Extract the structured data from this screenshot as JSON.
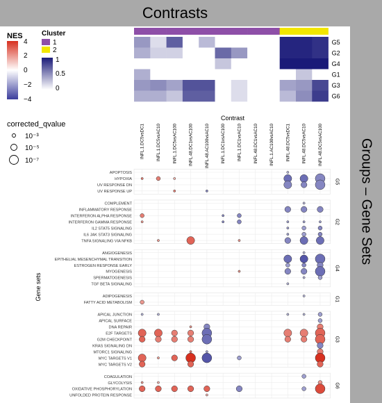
{
  "banner": {
    "top_title": "Contrasts",
    "right_title": "Groups – Gene Sets"
  },
  "legend": {
    "nes_title": "NES",
    "nes_ticks": [
      "4",
      "2",
      "0",
      "−2",
      "−4"
    ],
    "nes_colors": {
      "high": "#d7301f",
      "mid": "#ffffff",
      "low": "#3b3d9c"
    },
    "cluster_title": "Cluster",
    "clusters": [
      {
        "label": "1",
        "color": "#8e4fa8"
      },
      {
        "label": "2",
        "color": "#f2e600"
      }
    ],
    "heat_ticks": [
      "1",
      "0.5",
      "0"
    ],
    "heat_colors": {
      "high": "#1a1a78",
      "low": "#ffffff"
    },
    "q_title": "corrected_qvalue",
    "q_labels": [
      "10⁻³",
      "10⁻⁵",
      "10⁻⁷"
    ]
  },
  "chart_data": [
    {
      "type": "heatmap",
      "title": "",
      "xlabel": "Contrast",
      "columns": [
        "INFL.1.DC5vsDC1",
        "INFL.1.DC5vsAC10",
        "INFL.1.DC5vsAC100",
        "INFL.48.DC1vsAC100",
        "INFL.48.AC100vsAC10",
        "INFL.1.DC1vsAC100",
        "INFL.1.DC1vsAC10",
        "INFL.48.DC1vsAC10",
        "INFL.1.AC100vsAC10",
        "INFL.48.DC5vsDC1",
        "INFL.48.DC5vsAC10",
        "INFL.48.DC5vsAC100"
      ],
      "column_clusters": [
        "1",
        "1",
        "1",
        "1",
        "1",
        "1",
        "1",
        "1",
        "1",
        "2",
        "2",
        "2"
      ],
      "rows": [
        "G5",
        "G2",
        "G4",
        "G1",
        "G3",
        "G6"
      ],
      "values": [
        [
          0.45,
          0.15,
          0.7,
          0,
          0.3,
          0,
          0,
          0,
          0,
          0.95,
          0.95,
          0.9
        ],
        [
          0.35,
          0.2,
          0.2,
          0,
          0,
          0.65,
          0.45,
          0,
          0,
          0.95,
          0.95,
          0.9
        ],
        [
          0,
          0,
          0,
          0,
          0,
          0.25,
          0,
          0,
          0,
          1.0,
          1.0,
          1.0
        ],
        [
          0.35,
          0,
          0,
          0,
          0,
          0,
          0,
          0,
          0,
          0,
          0.25,
          0
        ],
        [
          0.45,
          0.5,
          0.4,
          0.75,
          0.75,
          0,
          0.15,
          0,
          0,
          0.4,
          0.45,
          0.8
        ],
        [
          0.35,
          0.35,
          0.25,
          0.7,
          0.7,
          0,
          0.15,
          0,
          0,
          0.3,
          0.5,
          0.85
        ]
      ],
      "value_range": [
        0,
        1
      ]
    },
    {
      "type": "scatter",
      "title": "",
      "ylabel": "Gene sets",
      "x": [
        "INFL.1.DC5vsDC1",
        "INFL.1.DC5vsAC10",
        "INFL.1.DC5vsAC100",
        "INFL.48.DC1vsAC100",
        "INFL.48.AC100vsAC10",
        "INFL.1.DC1vsAC100",
        "INFL.1.DC1vsAC10",
        "INFL.48.DC1vsAC10",
        "INFL.1.AC100vsAC10",
        "INFL.48.DC5vsDC1",
        "INFL.48.DC5vsAC10",
        "INFL.48.DC5vsAC100"
      ],
      "groups": [
        {
          "name": "G5",
          "genesets": [
            "APOPTOSIS",
            "HYPOXIA",
            "UV RESPONSE DN",
            "UV RESPONSE UP"
          ]
        },
        {
          "name": "G2",
          "genesets": [
            "COMPLEMENT",
            "INFLAMMATORY RESPONSE",
            "INTERFERON ALPHA RESPONSE",
            "INTERFERON GAMMA RESPONSE",
            "IL2 STAT5 SIGNALING",
            "IL6 JAK STAT3 SIGNALING",
            "TNFA SIGNALING VIA NFKB"
          ]
        },
        {
          "name": "G4",
          "genesets": [
            "ANGIOGENESIS",
            "EPITHELIAL MESENCHYMAL TRANSITION",
            "ESTROGEN RESPONSE EARLY",
            "MYOGENESIS",
            "SPERMATOGENESIS",
            "TGF BETA SIGNALING"
          ]
        },
        {
          "name": "G1",
          "genesets": [
            "ADIPOGENESIS",
            "FATTY ACID METABOLISM"
          ]
        },
        {
          "name": "G3",
          "genesets": [
            "APICAL JUNCTION",
            "APICAL SURFACE",
            "DNA REPAIR",
            "E2F TARGETS",
            "G2M CHECKPOINT",
            "KRAS SIGNALING DN",
            "MTORC1 SIGNALING",
            "MYC TARGETS V1",
            "MYC TARGETS V2"
          ]
        },
        {
          "name": "G6",
          "genesets": [
            "COAGULATION",
            "GLYCOLYSIS",
            "OXIDATIVE PHOSPHORYLATION",
            "UNFOLDED PROTEIN RESPONSE"
          ]
        }
      ],
      "points": [
        {
          "set": "APOPTOSIS",
          "col": 9,
          "nes": -1.5,
          "logq": 3
        },
        {
          "set": "HYPOXIA",
          "col": 0,
          "nes": 2.5,
          "logq": 3
        },
        {
          "set": "HYPOXIA",
          "col": 1,
          "nes": 2.5,
          "logq": 4
        },
        {
          "set": "HYPOXIA",
          "col": 2,
          "nes": 1.5,
          "logq": 3
        },
        {
          "set": "HYPOXIA",
          "col": 9,
          "nes": -3,
          "logq": 6
        },
        {
          "set": "HYPOXIA",
          "col": 10,
          "nes": -3,
          "logq": 6
        },
        {
          "set": "HYPOXIA",
          "col": 11,
          "nes": -2.5,
          "logq": 7
        },
        {
          "set": "UV RESPONSE DN",
          "col": 9,
          "nes": -2.5,
          "logq": 6
        },
        {
          "set": "UV RESPONSE DN",
          "col": 10,
          "nes": -2.5,
          "logq": 5
        },
        {
          "set": "UV RESPONSE DN",
          "col": 11,
          "nes": -2.5,
          "logq": 7
        },
        {
          "set": "UV RESPONSE UP",
          "col": 2,
          "nes": 2.5,
          "logq": 3
        },
        {
          "set": "UV RESPONSE UP",
          "col": 4,
          "nes": -2.5,
          "logq": 3
        },
        {
          "set": "COMPLEMENT",
          "col": 10,
          "nes": -1.5,
          "logq": 3
        },
        {
          "set": "INFLAMMATORY RESPONSE",
          "col": 9,
          "nes": -2.5,
          "logq": 5
        },
        {
          "set": "INFLAMMATORY RESPONSE",
          "col": 10,
          "nes": -2.5,
          "logq": 5
        },
        {
          "set": "INFLAMMATORY RESPONSE",
          "col": 11,
          "nes": -2.5,
          "logq": 5
        },
        {
          "set": "INTERFERON ALPHA RESPONSE",
          "col": 0,
          "nes": 2.5,
          "logq": 4
        },
        {
          "set": "INTERFERON ALPHA RESPONSE",
          "col": 5,
          "nes": -2.5,
          "logq": 3
        },
        {
          "set": "INTERFERON ALPHA RESPONSE",
          "col": 6,
          "nes": -2.5,
          "logq": 4
        },
        {
          "set": "INTERFERON GAMMA RESPONSE",
          "col": 0,
          "nes": 2,
          "logq": 3
        },
        {
          "set": "INTERFERON GAMMA RESPONSE",
          "col": 5,
          "nes": -2.5,
          "logq": 3
        },
        {
          "set": "INTERFERON GAMMA RESPONSE",
          "col": 6,
          "nes": -2.5,
          "logq": 4
        },
        {
          "set": "INTERFERON GAMMA RESPONSE",
          "col": 9,
          "nes": -2,
          "logq": 3
        },
        {
          "set": "INTERFERON GAMMA RESPONSE",
          "col": 10,
          "nes": -2,
          "logq": 3
        },
        {
          "set": "INTERFERON GAMMA RESPONSE",
          "col": 11,
          "nes": -2,
          "logq": 3
        },
        {
          "set": "IL2 STAT5 SIGNALING",
          "col": 9,
          "nes": -2,
          "logq": 3
        },
        {
          "set": "IL2 STAT5 SIGNALING",
          "col": 10,
          "nes": -2,
          "logq": 4
        },
        {
          "set": "IL2 STAT5 SIGNALING",
          "col": 11,
          "nes": -2.5,
          "logq": 4
        },
        {
          "set": "IL6 JAK STAT3 SIGNALING",
          "col": 9,
          "nes": -2,
          "logq": 3
        },
        {
          "set": "IL6 JAK STAT3 SIGNALING",
          "col": 10,
          "nes": -2,
          "logq": 4
        },
        {
          "set": "IL6 JAK STAT3 SIGNALING",
          "col": 11,
          "nes": -2.5,
          "logq": 4
        },
        {
          "set": "TNFA SIGNALING VIA NFKB",
          "col": 1,
          "nes": 2,
          "logq": 3
        },
        {
          "set": "TNFA SIGNALING VIA NFKB",
          "col": 3,
          "nes": 3,
          "logq": 6
        },
        {
          "set": "TNFA SIGNALING VIA NFKB",
          "col": 6,
          "nes": 2,
          "logq": 3
        },
        {
          "set": "TNFA SIGNALING VIA NFKB",
          "col": 9,
          "nes": -2.5,
          "logq": 5
        },
        {
          "set": "TNFA SIGNALING VIA NFKB",
          "col": 10,
          "nes": -3,
          "logq": 6
        },
        {
          "set": "TNFA SIGNALING VIA NFKB",
          "col": 11,
          "nes": -3,
          "logq": 6
        },
        {
          "set": "ANGIOGENESIS",
          "col": 10,
          "nes": -1.5,
          "logq": 3
        },
        {
          "set": "EPITHELIAL MESENCHYMAL TRANSITION",
          "col": 9,
          "nes": -3,
          "logq": 6
        },
        {
          "set": "EPITHELIAL MESENCHYMAL TRANSITION",
          "col": 10,
          "nes": -3.5,
          "logq": 6
        },
        {
          "set": "EPITHELIAL MESENCHYMAL TRANSITION",
          "col": 11,
          "nes": -3,
          "logq": 7
        },
        {
          "set": "ESTROGEN RESPONSE EARLY",
          "col": 9,
          "nes": -2,
          "logq": 4
        },
        {
          "set": "ESTROGEN RESPONSE EARLY",
          "col": 10,
          "nes": -2.5,
          "logq": 4
        },
        {
          "set": "ESTROGEN RESPONSE EARLY",
          "col": 11,
          "nes": -2.5,
          "logq": 5
        },
        {
          "set": "MYOGENESIS",
          "col": 6,
          "nes": 2,
          "logq": 3
        },
        {
          "set": "MYOGENESIS",
          "col": 9,
          "nes": -2.5,
          "logq": 5
        },
        {
          "set": "MYOGENESIS",
          "col": 10,
          "nes": -2.5,
          "logq": 5
        },
        {
          "set": "MYOGENESIS",
          "col": 11,
          "nes": -3,
          "logq": 7
        },
        {
          "set": "SPERMATOGENESIS",
          "col": 10,
          "nes": -1.5,
          "logq": 3
        },
        {
          "set": "SPERMATOGENESIS",
          "col": 11,
          "nes": -2,
          "logq": 4
        },
        {
          "set": "TGF BETA SIGNALING",
          "col": 9,
          "nes": -1.5,
          "logq": 3
        },
        {
          "set": "ADIPOGENESIS",
          "col": 10,
          "nes": -1.5,
          "logq": 3
        },
        {
          "set": "FATTY ACID METABOLISM",
          "col": 0,
          "nes": 2,
          "logq": 4
        },
        {
          "set": "APICAL JUNCTION",
          "col": 0,
          "nes": -1.5,
          "logq": 3
        },
        {
          "set": "APICAL JUNCTION",
          "col": 1,
          "nes": -1.5,
          "logq": 3
        },
        {
          "set": "APICAL JUNCTION",
          "col": 9,
          "nes": -1.5,
          "logq": 3
        },
        {
          "set": "APICAL JUNCTION",
          "col": 10,
          "nes": -1.5,
          "logq": 3
        },
        {
          "set": "APICAL JUNCTION",
          "col": 11,
          "nes": -2,
          "logq": 4
        },
        {
          "set": "APICAL SURFACE",
          "col": 11,
          "nes": -2,
          "logq": 4
        },
        {
          "set": "DNA REPAIR",
          "col": 3,
          "nes": 2,
          "logq": 3
        },
        {
          "set": "DNA REPAIR",
          "col": 4,
          "nes": -2.5,
          "logq": 5
        },
        {
          "set": "DNA REPAIR",
          "col": 11,
          "nes": 2.5,
          "logq": 5
        },
        {
          "set": "E2F TARGETS",
          "col": 0,
          "nes": 3,
          "logq": 6
        },
        {
          "set": "E2F TARGETS",
          "col": 1,
          "nes": 3,
          "logq": 6
        },
        {
          "set": "E2F TARGETS",
          "col": 2,
          "nes": 2.5,
          "logq": 5
        },
        {
          "set": "E2F TARGETS",
          "col": 3,
          "nes": 2.5,
          "logq": 5
        },
        {
          "set": "E2F TARGETS",
          "col": 4,
          "nes": -3,
          "logq": 7
        },
        {
          "set": "E2F TARGETS",
          "col": 9,
          "nes": 2.5,
          "logq": 6
        },
        {
          "set": "E2F TARGETS",
          "col": 10,
          "nes": 2.5,
          "logq": 6
        },
        {
          "set": "E2F TARGETS",
          "col": 11,
          "nes": 3,
          "logq": 7
        },
        {
          "set": "G2M CHECKPOINT",
          "col": 0,
          "nes": 3,
          "logq": 5
        },
        {
          "set": "G2M CHECKPOINT",
          "col": 1,
          "nes": 2.5,
          "logq": 5
        },
        {
          "set": "G2M CHECKPOINT",
          "col": 2,
          "nes": 2.5,
          "logq": 5
        },
        {
          "set": "G2M CHECKPOINT",
          "col": 3,
          "nes": 2.5,
          "logq": 5
        },
        {
          "set": "G2M CHECKPOINT",
          "col": 4,
          "nes": -3,
          "logq": 7
        },
        {
          "set": "G2M CHECKPOINT",
          "col": 9,
          "nes": 2.5,
          "logq": 5
        },
        {
          "set": "G2M CHECKPOINT",
          "col": 10,
          "nes": 2.5,
          "logq": 5
        },
        {
          "set": "G2M CHECKPOINT",
          "col": 11,
          "nes": 3,
          "logq": 7
        },
        {
          "set": "KRAS SIGNALING DN",
          "col": 11,
          "nes": -2.5,
          "logq": 5
        },
        {
          "set": "MTORC1 SIGNALING",
          "col": 3,
          "nes": 2.5,
          "logq": 3
        },
        {
          "set": "MTORC1 SIGNALING",
          "col": 4,
          "nes": -2,
          "logq": 3
        },
        {
          "set": "MTORC1 SIGNALING",
          "col": 11,
          "nes": 2.5,
          "logq": 5
        },
        {
          "set": "MYC TARGETS V1",
          "col": 0,
          "nes": 3,
          "logq": 6
        },
        {
          "set": "MYC TARGETS V1",
          "col": 1,
          "nes": 2,
          "logq": 3
        },
        {
          "set": "MYC TARGETS V1",
          "col": 2,
          "nes": 3,
          "logq": 5
        },
        {
          "set": "MYC TARGETS V1",
          "col": 3,
          "nes": 4,
          "logq": 7
        },
        {
          "set": "MYC TARGETS V1",
          "col": 4,
          "nes": -3.5,
          "logq": 7
        },
        {
          "set": "MYC TARGETS V1",
          "col": 6,
          "nes": -2,
          "logq": 4
        },
        {
          "set": "MYC TARGETS V1",
          "col": 11,
          "nes": 4,
          "logq": 7
        },
        {
          "set": "MYC TARGETS V2",
          "col": 0,
          "nes": 3,
          "logq": 5
        },
        {
          "set": "MYC TARGETS V2",
          "col": 3,
          "nes": 3,
          "logq": 5
        },
        {
          "set": "MYC TARGETS V2",
          "col": 11,
          "nes": 3,
          "logq": 5
        },
        {
          "set": "COAGULATION",
          "col": 10,
          "nes": -2,
          "logq": 4
        },
        {
          "set": "GLYCOLYSIS",
          "col": 0,
          "nes": 2,
          "logq": 3
        },
        {
          "set": "GLYCOLYSIS",
          "col": 1,
          "nes": 1.5,
          "logq": 3
        },
        {
          "set": "GLYCOLYSIS",
          "col": 11,
          "nes": 2,
          "logq": 4
        },
        {
          "set": "OXIDATIVE PHOSPHORYLATION",
          "col": 0,
          "nes": 3,
          "logq": 5
        },
        {
          "set": "OXIDATIVE PHOSPHORYLATION",
          "col": 1,
          "nes": 3,
          "logq": 5
        },
        {
          "set": "OXIDATIVE PHOSPHORYLATION",
          "col": 2,
          "nes": 3,
          "logq": 5
        },
        {
          "set": "OXIDATIVE PHOSPHORYLATION",
          "col": 3,
          "nes": 3,
          "logq": 5
        },
        {
          "set": "OXIDATIVE PHOSPHORYLATION",
          "col": 4,
          "nes": 3,
          "logq": 5
        },
        {
          "set": "OXIDATIVE PHOSPHORYLATION",
          "col": 6,
          "nes": -2.5,
          "logq": 5
        },
        {
          "set": "OXIDATIVE PHOSPHORYLATION",
          "col": 10,
          "nes": -2,
          "logq": 4
        },
        {
          "set": "OXIDATIVE PHOSPHORYLATION",
          "col": 11,
          "nes": 3.5,
          "logq": 7
        },
        {
          "set": "UNFOLDED PROTEIN RESPONSE",
          "col": 4,
          "nes": 1.5,
          "logq": 3
        }
      ]
    }
  ]
}
